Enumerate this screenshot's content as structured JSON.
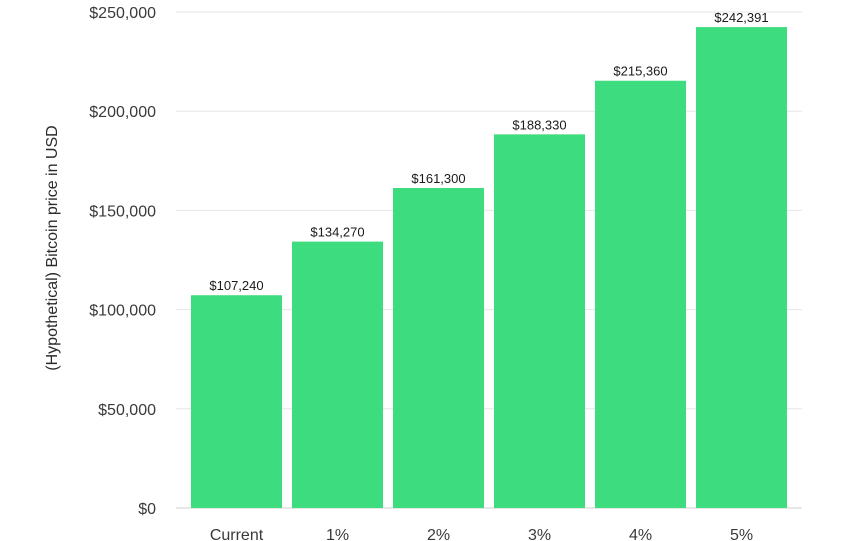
{
  "chart_data": {
    "type": "bar",
    "title": "",
    "xlabel": "",
    "ylabel": "(Hypothetical) Bitcoin price in USD",
    "categories": [
      "Current",
      "1%",
      "2%",
      "3%",
      "4%",
      "5%"
    ],
    "values": [
      107240,
      134270,
      161300,
      188330,
      215360,
      242391
    ],
    "value_labels": [
      "$107,240",
      "$134,270",
      "$161,300",
      "$188,330",
      "$215,360",
      "$242,391"
    ],
    "ylim": [
      0,
      250000
    ],
    "yticks": [
      0,
      50000,
      100000,
      150000,
      200000,
      250000
    ],
    "ytick_labels": [
      "$0",
      "$50,000",
      "$100,000",
      "$150,000",
      "$200,000",
      "$250,000"
    ],
    "grid": true,
    "legend": "none",
    "bar_color": "#3ddc7e"
  }
}
